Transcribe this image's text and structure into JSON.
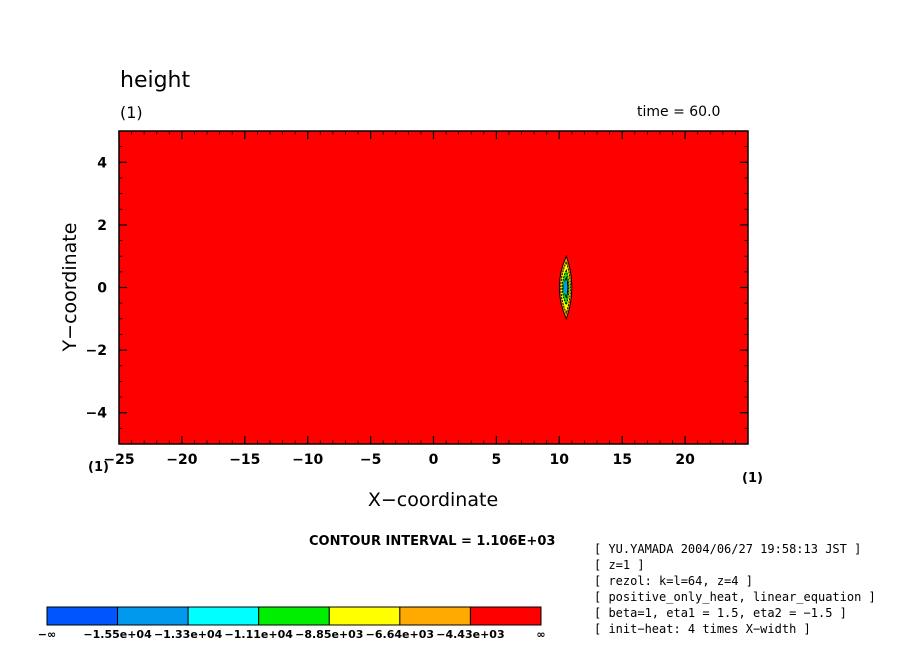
{
  "chart_data": {
    "type": "heatmap",
    "title": "height",
    "time_label": "time = 60.0",
    "xlabel": "X−coordinate",
    "ylabel": "Y−coordinate",
    "unit_top_left": "(1)",
    "unit_x_left": "(1)",
    "unit_x_right": "(1)",
    "xlim": [
      -25,
      25
    ],
    "ylim": [
      -5,
      5
    ],
    "x_ticks": [
      -25,
      -20,
      -15,
      -10,
      -5,
      0,
      5,
      10,
      15,
      20
    ],
    "x_tick_labels": [
      "−25",
      "−20",
      "−15",
      "−10",
      "−5",
      "0",
      "5",
      "10",
      "15",
      "20"
    ],
    "y_ticks": [
      -4,
      -2,
      0,
      2,
      4
    ],
    "y_tick_labels": [
      "−4",
      "−2",
      "0",
      "2",
      "4"
    ],
    "background_level_color": "#ff0000",
    "feature": {
      "x_center": 10.4,
      "y_extent": [
        -1,
        1
      ]
    },
    "contour_interval_label": "CONTOUR INTERVAL = 1.106E+03",
    "legend": {
      "colors": [
        "#0055ff",
        "#0099ee",
        "#00ffff",
        "#00ee00",
        "#ffff00",
        "#ffaa00",
        "#ff0000"
      ],
      "labels": [
        "−∞",
        "−1.55e+04",
        "−1.33e+04",
        "−1.11e+04",
        "−8.85e+03",
        "−6.64e+03",
        "−4.43e+03",
        "∞"
      ]
    }
  },
  "notes": [
    "[ YU.YAMADA 2004/06/27 19:58:13 JST ]",
    "[ z=1 ]",
    "[ rezol: k=l=64, z=4 ]",
    "[ positive_only_heat, linear_equation ]",
    "[ beta=1, eta1 = 1.5, eta2 = −1.5 ]",
    "[ init−heat: 4 times X−width ]"
  ]
}
